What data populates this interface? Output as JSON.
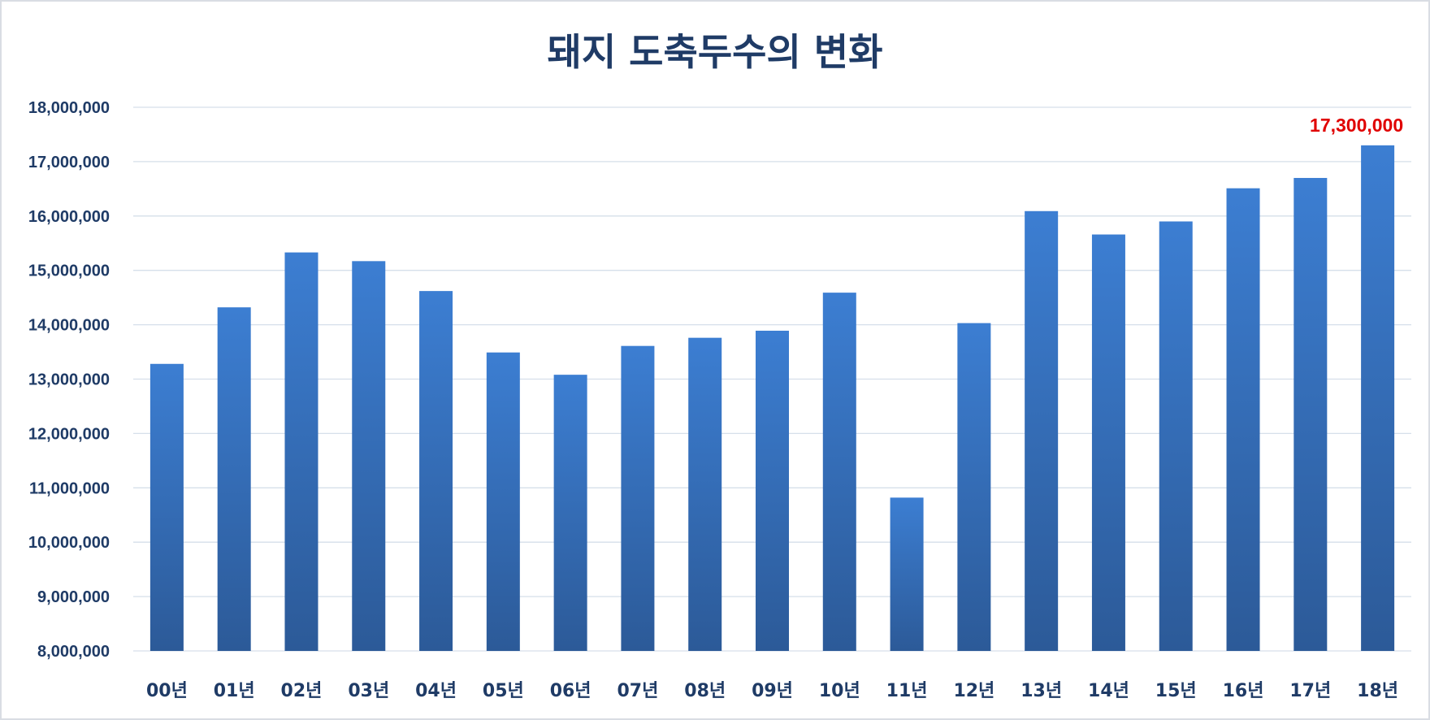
{
  "chart_data": {
    "type": "bar",
    "title": "돼지 도축두수의 변화",
    "xlabel": "",
    "ylabel": "",
    "categories": [
      "00년",
      "01년",
      "02년",
      "03년",
      "04년",
      "05년",
      "06년",
      "07년",
      "08년",
      "09년",
      "10년",
      "11년",
      "12년",
      "13년",
      "14년",
      "15년",
      "16년",
      "17년",
      "18년"
    ],
    "values": [
      13280000,
      14320000,
      15330000,
      15170000,
      14620000,
      13490000,
      13080000,
      13610000,
      13760000,
      13890000,
      14590000,
      10820000,
      14030000,
      16090000,
      15660000,
      15900000,
      16510000,
      16700000,
      17300000
    ],
    "ylim": [
      8000000,
      18000000
    ],
    "yticks": [
      "8,000,000",
      "9,000,000",
      "10,000,000",
      "11,000,000",
      "12,000,000",
      "13,000,000",
      "14,000,000",
      "15,000,000",
      "16,000,000",
      "17,000,000",
      "18,000,000"
    ],
    "ytick_values": [
      8000000,
      9000000,
      10000000,
      11000000,
      12000000,
      13000000,
      14000000,
      15000000,
      16000000,
      17000000,
      18000000
    ],
    "grid": true,
    "legend": "none",
    "bar_color_top": "#3c7ed2",
    "bar_color_bottom": "#2c5a98",
    "annotations": [
      {
        "category": "18년",
        "text": "17,300,000",
        "color": "#e00000"
      }
    ]
  }
}
